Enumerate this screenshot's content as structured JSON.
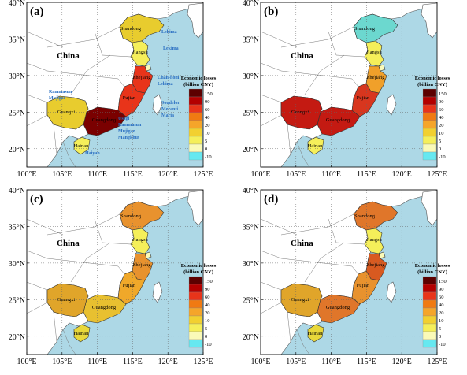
{
  "x_ticks": [
    "100°E",
    "105°E",
    "110°E",
    "115°E",
    "120°E",
    "125°E"
  ],
  "y_ticks": [
    "40°N",
    "35°N",
    "30°N",
    "25°N",
    "20°N"
  ],
  "country_label": "China",
  "legend": {
    "title_line1": "Economic losses",
    "title_line2": "(billion CNY)",
    "levels": [
      "150",
      "90",
      "60",
      "40",
      "20",
      "10",
      "5",
      "0",
      "-10"
    ],
    "colors": [
      "#5c0000",
      "#b30000",
      "#e8341a",
      "#f07a12",
      "#f5a52a",
      "#f2d030",
      "#f5ef5a",
      "#fafab8",
      "#66e8f0"
    ]
  },
  "colors": {
    "sea": "#add8e6",
    "land": "#ffffff",
    "border": "#555555"
  },
  "panels": [
    {
      "label": "(a)",
      "provinces": {
        "Shandong": {
          "name": "Shandong",
          "color": "#e8cc2e"
        },
        "Jiangsu": {
          "name": "Jiangsu",
          "color": "#f5ef5a"
        },
        "Shanghai": {
          "name": "",
          "color": "#fafab8"
        },
        "Zhejiang": {
          "name": "Zhejiang",
          "color": "#e8341a"
        },
        "Fujian": {
          "name": "Fujian",
          "color": "#e8341a"
        },
        "Guangdong": {
          "name": "Guangdong",
          "color": "#7a0000"
        },
        "Guangxi": {
          "name": "Guangxi",
          "color": "#e8cc2e"
        },
        "Hainan": {
          "name": "Hainan",
          "color": "#f5ef5a"
        }
      },
      "typhoons": [
        {
          "text": "Lekima",
          "x": 205,
          "y": 42
        },
        {
          "text": "Lekima",
          "x": 207,
          "y": 63
        },
        {
          "text": "Chan-hom",
          "x": 200,
          "y": 100
        },
        {
          "text": "Lekima",
          "x": 200,
          "y": 108
        },
        {
          "text": "Soudelor",
          "x": 205,
          "y": 132
        },
        {
          "text": "Meranti",
          "x": 205,
          "y": 140
        },
        {
          "text": "Maria",
          "x": 205,
          "y": 148
        },
        {
          "text": "Rammasun",
          "x": 62,
          "y": 118
        },
        {
          "text": "Mujigae",
          "x": 62,
          "y": 126
        },
        {
          "text": "Usagi",
          "x": 150,
          "y": 152
        },
        {
          "text": "Rammasun",
          "x": 150,
          "y": 160
        },
        {
          "text": "Mujigae",
          "x": 150,
          "y": 168
        },
        {
          "text": "Mangkhut",
          "x": 150,
          "y": 176
        },
        {
          "text": "Haiyan",
          "x": 108,
          "y": 196
        }
      ]
    },
    {
      "label": "(b)",
      "provinces": {
        "Shandong": {
          "name": "Shandong",
          "color": "#6cd8cf"
        },
        "Jiangsu": {
          "name": "Jiangsu",
          "color": "#f5ef5a"
        },
        "Shanghai": {
          "name": "",
          "color": "#fafab8"
        },
        "Zhejiang": {
          "name": "Zhejiang",
          "color": "#f0a02a"
        },
        "Fujian": {
          "name": "Fujian",
          "color": "#d8361e"
        },
        "Guangdong": {
          "name": "Guangdong",
          "color": "#c41a12"
        },
        "Guangxi": {
          "name": "Guangxi",
          "color": "#c41a12"
        },
        "Hainan": {
          "name": "Hainan",
          "color": "#f5ef5a"
        }
      },
      "typhoons": []
    },
    {
      "label": "(c)",
      "provinces": {
        "Shandong": {
          "name": "Shandong",
          "color": "#e8922e"
        },
        "Jiangsu": {
          "name": "Jiangsu",
          "color": "#f5ef5a"
        },
        "Shanghai": {
          "name": "",
          "color": "#fafab8"
        },
        "Zhejiang": {
          "name": "Zhejiang",
          "color": "#e8922e"
        },
        "Fujian": {
          "name": "Fujian",
          "color": "#f0a82a"
        },
        "Guangdong": {
          "name": "Guangdong",
          "color": "#e8c030"
        },
        "Guangxi": {
          "name": "Guangxi",
          "color": "#e0a52a"
        },
        "Hainan": {
          "name": "Hainan",
          "color": "#e8d83a"
        }
      },
      "typhoons": []
    },
    {
      "label": "(d)",
      "provinces": {
        "Shandong": {
          "name": "Shandong",
          "color": "#e0762a"
        },
        "Jiangsu": {
          "name": "Jiangsu",
          "color": "#f5ef5a"
        },
        "Shanghai": {
          "name": "",
          "color": "#fafab8"
        },
        "Zhejiang": {
          "name": "Zhejiang",
          "color": "#d85a20"
        },
        "Fujian": {
          "name": "Fujian",
          "color": "#e8922e"
        },
        "Guangdong": {
          "name": "Guangdong",
          "color": "#e0762a"
        },
        "Guangxi": {
          "name": "Guangxi",
          "color": "#e0a52a"
        },
        "Hainan": {
          "name": "Hainan",
          "color": "#e8d83a"
        }
      },
      "typhoons": []
    }
  ]
}
